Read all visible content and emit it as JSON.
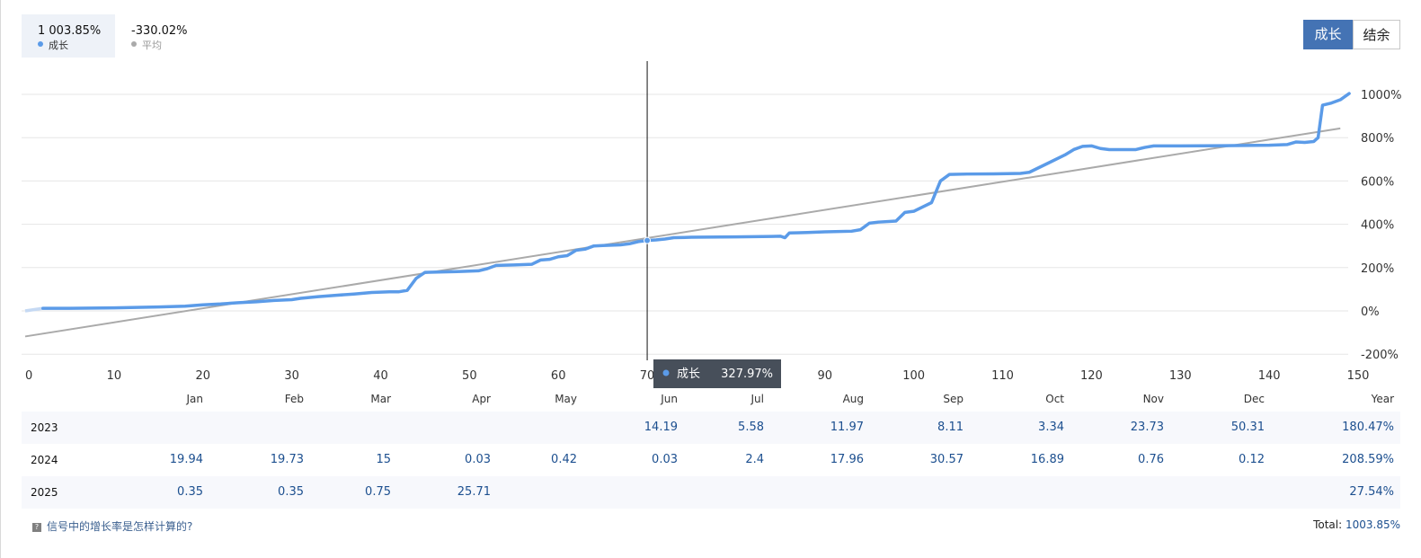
{
  "legend": {
    "growth": {
      "value": "1 003.85%",
      "label": "成长",
      "color": "#5b9be8"
    },
    "average": {
      "value": "-330.02%",
      "label": "平均",
      "color": "#aaaaaa"
    }
  },
  "toggle": {
    "growth_label": "成长",
    "balance_label": "结余",
    "active": "growth"
  },
  "tooltip": {
    "label": "成长",
    "value": "327.97%"
  },
  "chart_data": {
    "type": "line",
    "x_ticks": [
      0,
      10,
      20,
      30,
      40,
      50,
      60,
      70,
      80,
      90,
      100,
      110,
      120,
      130,
      140,
      150
    ],
    "y_ticks": [
      -200,
      0,
      200,
      400,
      600,
      800,
      1000
    ],
    "y_tick_labels": [
      "-200%",
      "0%",
      "200%",
      "400%",
      "600%",
      "800%",
      "1000%"
    ],
    "xlim": [
      0,
      150
    ],
    "ylim": [
      -230,
      1100
    ],
    "grid": "horizontal",
    "crosshair_x": 70,
    "series": [
      {
        "color": "#5b9be8",
        "points": [
          [
            0,
            0
          ],
          [
            2,
            12
          ],
          [
            5,
            12
          ],
          [
            10,
            14
          ],
          [
            15,
            18
          ],
          [
            18,
            22
          ],
          [
            20,
            28
          ],
          [
            22,
            32
          ],
          [
            24,
            38
          ],
          [
            26,
            42
          ],
          [
            28,
            48
          ],
          [
            30,
            52
          ],
          [
            31,
            58
          ],
          [
            33,
            66
          ],
          [
            35,
            72
          ],
          [
            37,
            78
          ],
          [
            39,
            85
          ],
          [
            41,
            88
          ],
          [
            42,
            88
          ],
          [
            43,
            95
          ],
          [
            44,
            150
          ],
          [
            45,
            178
          ],
          [
            47,
            180
          ],
          [
            49,
            182
          ],
          [
            51,
            185
          ],
          [
            52,
            195
          ],
          [
            53,
            210
          ],
          [
            55,
            212
          ],
          [
            57,
            215
          ],
          [
            58,
            235
          ],
          [
            59,
            238
          ],
          [
            60,
            250
          ],
          [
            61,
            255
          ],
          [
            62,
            280
          ],
          [
            63,
            285
          ],
          [
            64,
            300
          ],
          [
            65,
            302
          ],
          [
            67,
            305
          ],
          [
            68,
            310
          ],
          [
            69,
            320
          ],
          [
            70,
            325
          ],
          [
            71,
            328
          ],
          [
            72,
            332
          ],
          [
            73,
            338
          ],
          [
            75,
            340
          ],
          [
            80,
            342
          ],
          [
            84,
            344
          ],
          [
            85,
            345
          ],
          [
            85.5,
            338
          ],
          [
            86,
            360
          ],
          [
            88,
            362
          ],
          [
            90,
            365
          ],
          [
            93,
            368
          ],
          [
            94,
            375
          ],
          [
            95,
            405
          ],
          [
            96,
            410
          ],
          [
            98,
            415
          ],
          [
            99,
            455
          ],
          [
            100,
            460
          ],
          [
            101,
            480
          ],
          [
            102,
            500
          ],
          [
            103,
            600
          ],
          [
            104,
            630
          ],
          [
            106,
            632
          ],
          [
            109,
            633
          ],
          [
            112,
            635
          ],
          [
            113,
            640
          ],
          [
            115,
            680
          ],
          [
            117,
            720
          ],
          [
            118,
            745
          ],
          [
            119,
            760
          ],
          [
            120,
            762
          ],
          [
            121,
            750
          ],
          [
            122,
            745
          ],
          [
            125,
            745
          ],
          [
            126,
            755
          ],
          [
            127,
            762
          ],
          [
            130,
            762
          ],
          [
            135,
            763
          ],
          [
            140,
            765
          ],
          [
            142,
            768
          ],
          [
            143,
            780
          ],
          [
            144,
            778
          ],
          [
            145,
            782
          ],
          [
            145.5,
            800
          ],
          [
            146,
            950
          ],
          [
            147,
            960
          ],
          [
            148,
            975
          ],
          [
            149,
            1003.85
          ]
        ]
      },
      {
        "color": "#aaaaaa",
        "points": [
          [
            0,
            -118
          ],
          [
            148,
            843
          ]
        ]
      }
    ]
  },
  "table": {
    "months": [
      "Jan",
      "Feb",
      "Mar",
      "Apr",
      "May",
      "Jun",
      "Jul",
      "Aug",
      "Sep",
      "Oct",
      "Nov",
      "Dec"
    ],
    "year_header": "Year",
    "rows": [
      {
        "year": "2023",
        "values": [
          "",
          "",
          "",
          "",
          "",
          "14.19",
          "5.58",
          "11.97",
          "8.11",
          "3.34",
          "23.73",
          "50.31"
        ],
        "total": "180.47%"
      },
      {
        "year": "2024",
        "values": [
          "19.94",
          "19.73",
          "15",
          "0.03",
          "0.42",
          "0.03",
          "2.4",
          "17.96",
          "30.57",
          "16.89",
          "0.76",
          "0.12"
        ],
        "total": "208.59%"
      },
      {
        "year": "2025",
        "values": [
          "0.35",
          "0.35",
          "0.75",
          "25.71",
          "",
          "",
          "",
          "",
          "",
          "",
          "",
          ""
        ],
        "total": "27.54%"
      }
    ]
  },
  "footer": {
    "help_text": "信号中的增长率是怎样计算的?",
    "total_label": "Total:",
    "total_value": "1003.85%"
  }
}
